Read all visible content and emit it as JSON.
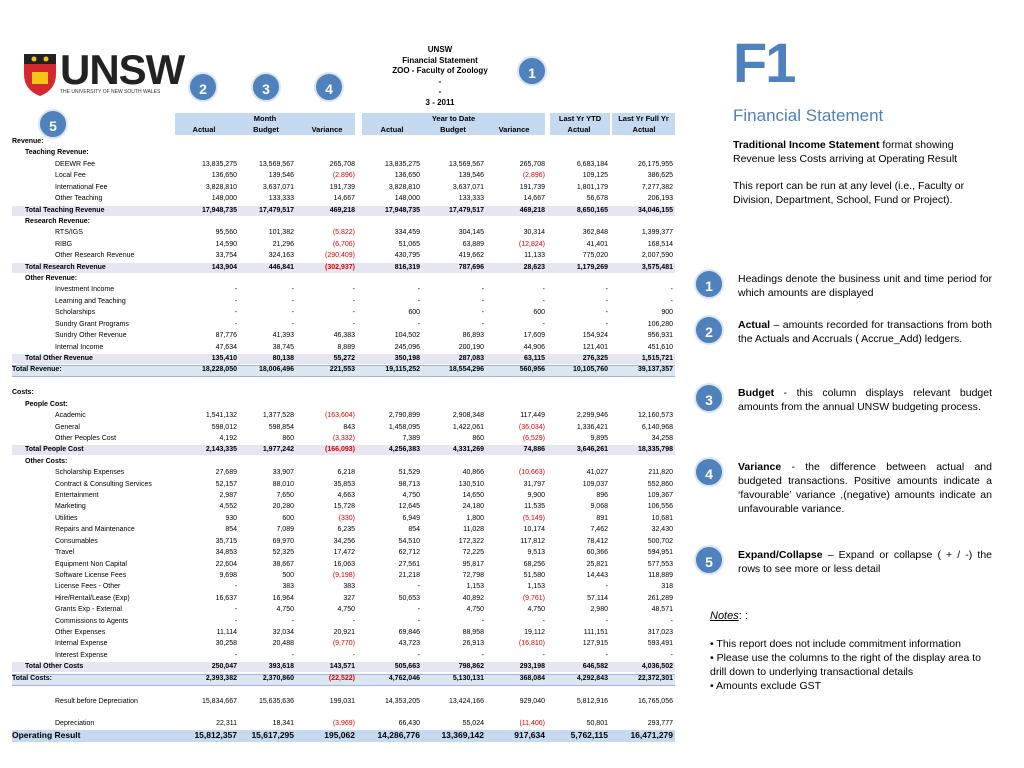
{
  "logo": {
    "name": "UNSW",
    "tagline": "THE UNIVERSITY OF NEW SOUTH WALES"
  },
  "report_header": [
    "UNSW",
    "Financial Statement",
    "ZOO - Faculty of Zoology",
    "-",
    "-",
    "3 - 2011"
  ],
  "badges": [
    "1",
    "2",
    "3",
    "4",
    "5"
  ],
  "table": {
    "groups": [
      "Month",
      "Year to Date",
      "Last Yr YTD",
      "Last Yr Full Yr"
    ],
    "columns": [
      "Actual",
      "Budget",
      "Variance",
      "Actual",
      "Budget",
      "Variance",
      "Actual",
      "Actual"
    ],
    "rows": [
      {
        "label": "Revenue:"
      },
      {
        "label": "Teaching Revenue:"
      },
      {
        "label": "DEEWR Fee",
        "values": [
          "13,835,275",
          "13,569,567",
          "265,708",
          "13,835,275",
          "13,569,567",
          "265,708",
          "6,683,184",
          "26,175,955"
        ]
      },
      {
        "label": "Local Fee",
        "values": [
          "136,650",
          "139,546",
          "(2,896)",
          "136,650",
          "139,546",
          "(2,896)",
          "109,125",
          "386,625"
        ]
      },
      {
        "label": "International Fee",
        "values": [
          "3,828,810",
          "3,637,071",
          "191,739",
          "3,828,810",
          "3,637,071",
          "191,739",
          "1,801,179",
          "7,277,382"
        ]
      },
      {
        "label": "Other Teaching",
        "values": [
          "148,000",
          "133,333",
          "14,667",
          "148,000",
          "133,333",
          "14,667",
          "56,678",
          "206,193"
        ]
      },
      {
        "label": "Total Teaching Revenue",
        "values": [
          "17,948,735",
          "17,479,517",
          "469,218",
          "17,948,735",
          "17,479,517",
          "469,218",
          "8,650,165",
          "34,046,155"
        ]
      },
      {
        "label": "Research Revenue:"
      },
      {
        "label": "RTS/IGS",
        "values": [
          "95,560",
          "101,382",
          "(5,822)",
          "334,459",
          "304,145",
          "30,314",
          "362,848",
          "1,399,377"
        ]
      },
      {
        "label": "RIBG",
        "values": [
          "14,590",
          "21,296",
          "(6,706)",
          "51,065",
          "63,889",
          "(12,824)",
          "41,401",
          "168,514"
        ]
      },
      {
        "label": "Other Research Revenue",
        "values": [
          "33,754",
          "324,163",
          "(290,409)",
          "430,795",
          "419,662",
          "11,133",
          "775,020",
          "2,007,590"
        ]
      },
      {
        "label": "Total Research Revenue",
        "values": [
          "143,904",
          "446,841",
          "(302,937)",
          "816,319",
          "787,696",
          "28,623",
          "1,179,269",
          "3,575,481"
        ]
      },
      {
        "label": "Other Revenue:"
      },
      {
        "label": "Investment Income",
        "values": [
          "-",
          "-",
          "-",
          "-",
          "-",
          "-",
          "-",
          "-"
        ]
      },
      {
        "label": "Learning and Teaching",
        "values": [
          "-",
          "-",
          "-",
          "-",
          "-",
          "-",
          "-",
          "-"
        ]
      },
      {
        "label": "Scholarships",
        "values": [
          "-",
          "-",
          "-",
          "600",
          "-",
          "600",
          "-",
          "900"
        ]
      },
      {
        "label": "Sundry Grant Programs",
        "values": [
          "-",
          "-",
          "-",
          "-",
          "-",
          "-",
          "-",
          "106,280"
        ]
      },
      {
        "label": "Sundry Other Revenue",
        "values": [
          "87,776",
          "41,393",
          "46,383",
          "104,502",
          "86,893",
          "17,609",
          "154,924",
          "956,931"
        ]
      },
      {
        "label": "Internal Income",
        "values": [
          "47,634",
          "38,745",
          "8,889",
          "245,096",
          "200,190",
          "44,906",
          "121,401",
          "451,610"
        ]
      },
      {
        "label": "Total Other Revenue",
        "values": [
          "135,410",
          "80,138",
          "55,272",
          "350,198",
          "287,083",
          "63,115",
          "276,325",
          "1,515,721"
        ]
      },
      {
        "label": "Total Revenue:",
        "values": [
          "18,228,050",
          "18,006,496",
          "221,553",
          "19,115,252",
          "18,554,296",
          "560,956",
          "10,105,760",
          "39,137,357"
        ]
      },
      {
        "label": "Costs:"
      },
      {
        "label": "People Cost:"
      },
      {
        "label": "Academic",
        "values": [
          "1,541,132",
          "1,377,528",
          "(163,604)",
          "2,790,899",
          "2,908,348",
          "117,449",
          "2,299,946",
          "12,160,573"
        ]
      },
      {
        "label": "General",
        "values": [
          "598,012",
          "598,854",
          "843",
          "1,458,095",
          "1,422,061",
          "(36,034)",
          "1,336,421",
          "6,140,968"
        ]
      },
      {
        "label": "Other Peoples Cost",
        "values": [
          "4,192",
          "860",
          "(3,332)",
          "7,389",
          "860",
          "(6,529)",
          "9,895",
          "34,258"
        ]
      },
      {
        "label": "Total People Cost",
        "values": [
          "2,143,335",
          "1,977,242",
          "(166,093)",
          "4,256,383",
          "4,331,269",
          "74,886",
          "3,646,261",
          "18,335,798"
        ]
      },
      {
        "label": "Other Costs:"
      },
      {
        "label": "Scholarship Expenses",
        "values": [
          "27,689",
          "33,907",
          "6,218",
          "51,529",
          "40,866",
          "(10,663)",
          "41,027",
          "211,820"
        ]
      },
      {
        "label": "Contract & Consulting Services",
        "values": [
          "52,157",
          "88,010",
          "35,853",
          "98,713",
          "130,510",
          "31,797",
          "109,037",
          "552,860"
        ]
      },
      {
        "label": "Entertainment",
        "values": [
          "2,987",
          "7,650",
          "4,663",
          "4,750",
          "14,650",
          "9,900",
          "896",
          "109,367"
        ]
      },
      {
        "label": "Marketing",
        "values": [
          "4,552",
          "20,280",
          "15,728",
          "12,645",
          "24,180",
          "11,535",
          "9,068",
          "106,556"
        ]
      },
      {
        "label": "Utilities",
        "values": [
          "930",
          "600",
          "(330)",
          "6,949",
          "1,800",
          "(5,149)",
          "891",
          "10,681"
        ]
      },
      {
        "label": "Repairs and Maintenance",
        "values": [
          "854",
          "7,089",
          "6,235",
          "854",
          "11,028",
          "10,174",
          "7,462",
          "32,430"
        ]
      },
      {
        "label": "Consumables",
        "values": [
          "35,715",
          "69,970",
          "34,256",
          "54,510",
          "172,322",
          "117,812",
          "78,412",
          "500,702"
        ]
      },
      {
        "label": "Travel",
        "values": [
          "34,853",
          "52,325",
          "17,472",
          "62,712",
          "72,225",
          "9,513",
          "60,366",
          "594,951"
        ]
      },
      {
        "label": "Equipment Non Capital",
        "values": [
          "22,604",
          "38,667",
          "16,063",
          "27,561",
          "95,817",
          "68,256",
          "25,821",
          "577,553"
        ]
      },
      {
        "label": "Software License Fees",
        "values": [
          "9,698",
          "500",
          "(9,198)",
          "21,218",
          "72,798",
          "51,580",
          "14,443",
          "118,889"
        ]
      },
      {
        "label": "License Fees - Other",
        "values": [
          "-",
          "383",
          "383",
          "-",
          "1,153",
          "1,153",
          "-",
          "318"
        ]
      },
      {
        "label": "Hire/Rental/Lease (Exp)",
        "values": [
          "16,637",
          "16,964",
          "327",
          "50,653",
          "40,892",
          "(9,761)",
          "57,114",
          "261,289"
        ]
      },
      {
        "label": "Grants Exp - External",
        "values": [
          "-",
          "4,750",
          "4,750",
          "-",
          "4,750",
          "4,750",
          "2,980",
          "48,571"
        ]
      },
      {
        "label": "Commissions to Agents",
        "values": [
          "-",
          "-",
          "-",
          "-",
          "-",
          "-",
          "-",
          "-"
        ]
      },
      {
        "label": "Other Expenses",
        "values": [
          "11,114",
          "32,034",
          "20,921",
          "69,846",
          "88,958",
          "19,112",
          "111,151",
          "317,023"
        ]
      },
      {
        "label": "Internal Expense",
        "values": [
          "30,258",
          "20,488",
          "(9,770)",
          "43,723",
          "26,913",
          "(16,810)",
          "127,915",
          "593,491"
        ]
      },
      {
        "label": "Interest Expense",
        "values": [
          "-",
          "-",
          "-",
          "-",
          "-",
          "-",
          "-",
          "-"
        ]
      },
      {
        "label": "Total Other Costs",
        "values": [
          "250,047",
          "393,618",
          "143,571",
          "505,663",
          "798,862",
          "293,198",
          "646,582",
          "4,036,502"
        ]
      },
      {
        "label": "Total Costs:",
        "values": [
          "2,393,382",
          "2,370,860",
          "(22,522)",
          "4,762,046",
          "5,130,131",
          "368,084",
          "4,292,843",
          "22,372,301"
        ]
      },
      {
        "label": "Result before Depreciation",
        "values": [
          "15,834,667",
          "15,635,636",
          "199,031",
          "14,353,205",
          "13,424,166",
          "929,040",
          "5,812,916",
          "16,765,056"
        ]
      },
      {
        "label": "Depreciation",
        "values": [
          "22,311",
          "18,341",
          "(3,969)",
          "66,430",
          "55,024",
          "(11,406)",
          "50,801",
          "293,777"
        ]
      },
      {
        "label": "Operating Result",
        "values": [
          "15,812,357",
          "15,617,295",
          "195,062",
          "14,286,776",
          "13,369,142",
          "917,634",
          "5,762,115",
          "16,471,279"
        ]
      }
    ]
  },
  "panel": {
    "code": "F1",
    "title": "Financial Statement",
    "intro": {
      "bold": "Traditional Income Statement",
      "text": " format showing Revenue less Costs arriving at Operating Result"
    },
    "scope": "This report can be run at any level (i.e., Faculty or Division, Department, School, Fund or Project).",
    "notes": [
      {
        "number": "1",
        "text": "Headings denote the business unit and time period for which amounts are displayed"
      },
      {
        "number": "2",
        "bold": "Actual",
        "text": " – amounts recorded for transactions from both  the Actuals and Accruals ( Accrue_Add) ledgers."
      },
      {
        "number": "3",
        "bold": "Budget",
        "text": "  - this column displays relevant budget amounts from the annual UNSW budgeting process."
      },
      {
        "number": "4",
        "bold": "Variance",
        "text": "  - the difference between actual and budgeted transactions.  Positive amounts indicate a ‘favourable’ variance ,(negative) amounts indicate an unfavourable variance."
      },
      {
        "number": "5",
        "bold": "Expand/Collapse",
        "text": " – Expand or collapse ( + / -) the rows to see more or less detail"
      }
    ],
    "notes_title": "Notes",
    "notes_suffix": ": :",
    "bullets": [
      "• This report does not include commitment information",
      "• Please use the columns to the right of the display area to drill down to underlying transactional details",
      "• Amounts exclude GST"
    ]
  }
}
